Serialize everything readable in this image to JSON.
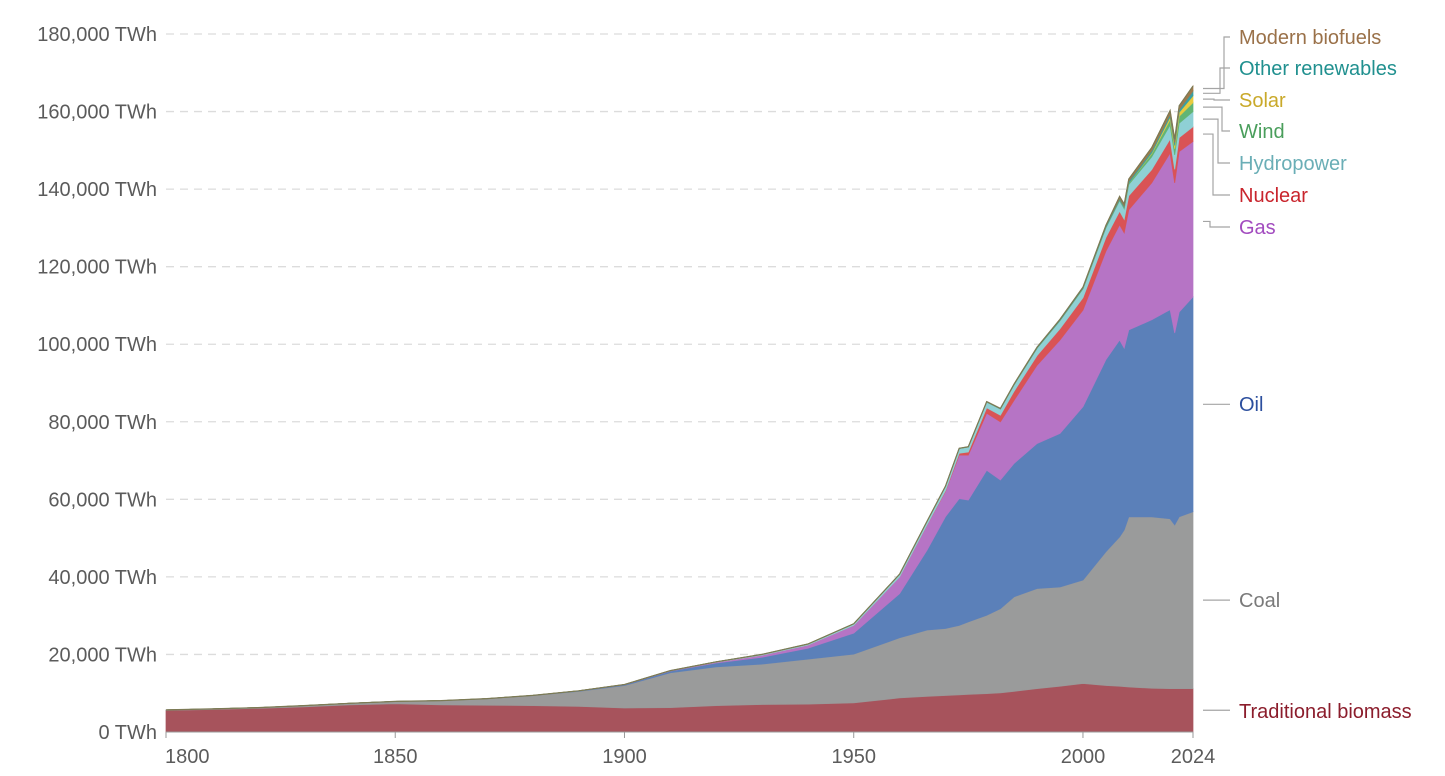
{
  "chart_data": {
    "type": "area",
    "stacked": true,
    "title": "",
    "xlabel": "",
    "ylabel": "",
    "unit": "TWh",
    "xlim": [
      1800,
      2024
    ],
    "ylim": [
      0,
      180000
    ],
    "grid": "horizontal dashed",
    "legend": "right, inline labels",
    "y_ticks": [
      0,
      20000,
      40000,
      60000,
      80000,
      100000,
      120000,
      140000,
      160000,
      180000
    ],
    "y_tick_labels": [
      "0 TWh",
      "20,000 TWh",
      "40,000 TWh",
      "60,000 TWh",
      "80,000 TWh",
      "100,000 TWh",
      "120,000 TWh",
      "140,000 TWh",
      "160,000 TWh",
      "180,000 TWh"
    ],
    "x_ticks": [
      1800,
      1850,
      1900,
      1950,
      2000,
      2024
    ],
    "x_tick_labels": [
      "1800",
      "1850",
      "1900",
      "1950",
      "2000",
      "2024"
    ],
    "x": [
      1800,
      1810,
      1820,
      1830,
      1840,
      1850,
      1860,
      1870,
      1880,
      1890,
      1900,
      1910,
      1920,
      1930,
      1940,
      1950,
      1960,
      1966,
      1970,
      1973,
      1975,
      1979,
      1982,
      1985,
      1990,
      1995,
      2000,
      2005,
      2008,
      2009,
      2010,
      2015,
      2019,
      2020,
      2021,
      2024
    ],
    "series": [
      {
        "name": "Traditional biomass",
        "color": "#a7535c",
        "label_color": "#8b1d2c",
        "values": [
          5600,
          5800,
          6100,
          6500,
          7000,
          7300,
          7000,
          6900,
          6800,
          6600,
          6200,
          6300,
          6800,
          7100,
          7200,
          7500,
          8800,
          9200,
          9400,
          9600,
          9700,
          9900,
          10100,
          10500,
          11200,
          11800,
          12500,
          12000,
          11800,
          11700,
          11600,
          11300,
          11200,
          11200,
          11200,
          11200
        ]
      },
      {
        "name": "Coal",
        "color": "#9a9b9b",
        "label_color": "#7a7a7a",
        "values": [
          100,
          150,
          200,
          300,
          400,
          600,
          1100,
          1700,
          2600,
          3900,
          5800,
          9000,
          10000,
          10400,
          11600,
          12600,
          15500,
          17100,
          17300,
          17900,
          18700,
          20200,
          21700,
          24400,
          25800,
          25600,
          26700,
          34500,
          38500,
          40400,
          43900,
          44200,
          43800,
          42200,
          44300,
          45600
        ]
      },
      {
        "name": "Oil",
        "color": "#5b80b9",
        "label_color": "#2c4f9e",
        "values": [
          0,
          0,
          0,
          0,
          0,
          0,
          0,
          10,
          50,
          100,
          200,
          400,
          1000,
          1800,
          2800,
          5400,
          11400,
          20600,
          28800,
          32700,
          31400,
          37400,
          33200,
          34400,
          37400,
          39600,
          44700,
          49500,
          50800,
          46900,
          48200,
          50800,
          53900,
          49500,
          52800,
          55400
        ]
      },
      {
        "name": "Gas",
        "color": "#b674c5",
        "label_color": "#a24bbf",
        "values": [
          0,
          0,
          0,
          0,
          0,
          0,
          0,
          0,
          0,
          20,
          50,
          100,
          200,
          500,
          800,
          2000,
          4300,
          6500,
          6500,
          11200,
          11600,
          14700,
          15000,
          16300,
          20200,
          24100,
          24900,
          28000,
          29700,
          29700,
          31000,
          35300,
          40400,
          38700,
          41400,
          40100
        ]
      },
      {
        "name": "Nuclear",
        "color": "#d95355",
        "label_color": "#c9252d",
        "values": [
          0,
          0,
          0,
          0,
          0,
          0,
          0,
          0,
          0,
          0,
          0,
          0,
          0,
          0,
          0,
          0,
          0,
          50,
          200,
          500,
          800,
          1400,
          1700,
          2300,
          2500,
          2900,
          3200,
          3500,
          3500,
          3500,
          3600,
          3400,
          3600,
          3500,
          3600,
          3800
        ]
      },
      {
        "name": "Hydropower",
        "color": "#8fd0d5",
        "label_color": "#6aaeb6",
        "values": [
          0,
          0,
          0,
          0,
          0,
          0,
          0,
          0,
          0,
          0,
          0,
          30,
          100,
          200,
          300,
          400,
          700,
          900,
          1100,
          1200,
          1300,
          1500,
          1600,
          1700,
          1900,
          2100,
          2300,
          2500,
          2700,
          2700,
          2900,
          3300,
          3600,
          3700,
          3700,
          3900
        ]
      },
      {
        "name": "Wind",
        "color": "#62b574",
        "label_color": "#4a9e5c",
        "values": [
          0,
          0,
          0,
          0,
          0,
          0,
          0,
          0,
          0,
          0,
          0,
          0,
          0,
          0,
          0,
          0,
          0,
          0,
          0,
          0,
          0,
          0,
          0,
          0,
          5,
          10,
          30,
          100,
          200,
          250,
          330,
          800,
          1400,
          1600,
          1800,
          2300
        ]
      },
      {
        "name": "Solar",
        "color": "#e8cb3e",
        "label_color": "#c9a92a",
        "values": [
          0,
          0,
          0,
          0,
          0,
          0,
          0,
          0,
          0,
          0,
          0,
          0,
          0,
          0,
          0,
          0,
          0,
          0,
          0,
          0,
          0,
          0,
          0,
          0,
          0,
          0,
          2,
          5,
          12,
          20,
          30,
          250,
          700,
          850,
          1000,
          1800
        ]
      },
      {
        "name": "Other renewables",
        "color": "#3a9fa2",
        "label_color": "#20908f",
        "values": [
          0,
          0,
          0,
          0,
          0,
          0,
          0,
          0,
          0,
          0,
          0,
          0,
          0,
          0,
          0,
          0,
          20,
          40,
          50,
          60,
          70,
          100,
          120,
          150,
          200,
          250,
          300,
          350,
          400,
          420,
          450,
          550,
          650,
          700,
          700,
          1200
        ]
      },
      {
        "name": "Modern biofuels",
        "color": "#a07a4b",
        "label_color": "#9a7149",
        "values": [
          0,
          0,
          0,
          0,
          0,
          0,
          0,
          0,
          0,
          0,
          0,
          0,
          0,
          0,
          0,
          0,
          0,
          0,
          0,
          0,
          0,
          10,
          20,
          50,
          60,
          80,
          100,
          200,
          500,
          550,
          600,
          800,
          1000,
          950,
          1000,
          1300
        ]
      }
    ]
  }
}
